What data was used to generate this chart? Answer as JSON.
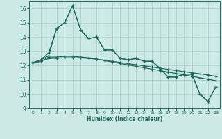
{
  "title": "",
  "xlabel": "Humidex (Indice chaleur)",
  "xlim": [
    -0.5,
    23.5
  ],
  "ylim": [
    9,
    16.5
  ],
  "yticks": [
    9,
    10,
    11,
    12,
    13,
    14,
    15,
    16
  ],
  "xticks": [
    0,
    1,
    2,
    3,
    4,
    5,
    6,
    7,
    8,
    9,
    10,
    11,
    12,
    13,
    14,
    15,
    16,
    17,
    18,
    19,
    20,
    21,
    22,
    23
  ],
  "background_color": "#cce9e6",
  "grid_color": "#aed4cf",
  "line_color": "#1e6b5e",
  "series1": [
    12.2,
    12.4,
    12.9,
    14.6,
    15.0,
    16.2,
    14.5,
    13.9,
    14.0,
    13.1,
    13.1,
    12.5,
    12.4,
    12.5,
    12.3,
    12.3,
    11.8,
    11.2,
    11.2,
    11.4,
    11.4,
    10.0,
    9.5,
    10.5
  ],
  "series2": [
    12.2,
    12.4,
    12.7,
    14.6,
    15.0,
    16.2,
    14.5,
    13.9,
    14.0,
    13.1,
    13.1,
    12.5,
    12.4,
    12.5,
    12.3,
    12.3,
    11.8,
    11.2,
    11.2,
    11.4,
    11.4,
    10.0,
    9.5,
    10.5
  ],
  "series3": [
    12.2,
    12.3,
    12.6,
    12.6,
    12.65,
    12.65,
    12.6,
    12.55,
    12.45,
    12.35,
    12.25,
    12.15,
    12.05,
    11.95,
    11.85,
    11.75,
    11.65,
    11.55,
    11.45,
    11.35,
    11.25,
    11.15,
    11.05,
    10.95
  ],
  "series4": [
    12.2,
    12.3,
    12.5,
    12.52,
    12.54,
    12.55,
    12.55,
    12.5,
    12.45,
    12.38,
    12.3,
    12.22,
    12.14,
    12.06,
    11.98,
    11.9,
    11.82,
    11.74,
    11.66,
    11.58,
    11.5,
    11.42,
    11.34,
    11.26
  ]
}
